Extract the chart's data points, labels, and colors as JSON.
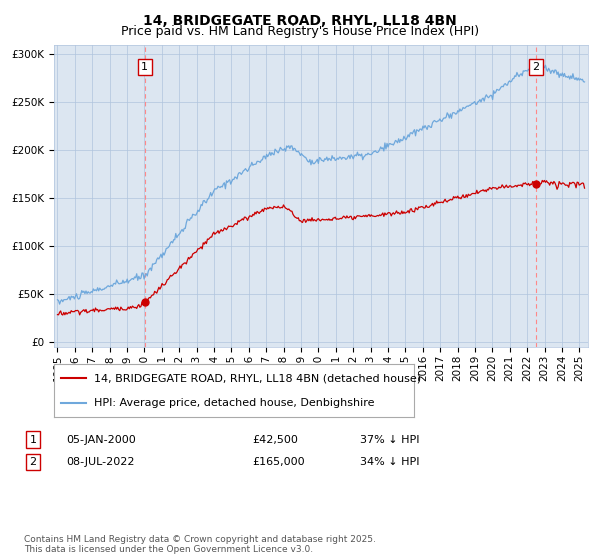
{
  "title": "14, BRIDGEGATE ROAD, RHYL, LL18 4BN",
  "subtitle": "Price paid vs. HM Land Registry's House Price Index (HPI)",
  "ylabel_ticks": [
    "£0",
    "£50K",
    "£100K",
    "£150K",
    "£200K",
    "£250K",
    "£300K"
  ],
  "ytick_values": [
    0,
    50000,
    100000,
    150000,
    200000,
    250000,
    300000
  ],
  "ylim": [
    -5000,
    310000
  ],
  "xlim_start": 1994.8,
  "xlim_end": 2025.5,
  "xticks": [
    1995,
    1996,
    1997,
    1998,
    1999,
    2000,
    2001,
    2002,
    2003,
    2004,
    2005,
    2006,
    2007,
    2008,
    2009,
    2010,
    2011,
    2012,
    2013,
    2014,
    2015,
    2016,
    2017,
    2018,
    2019,
    2020,
    2021,
    2022,
    2023,
    2024,
    2025
  ],
  "hpi_color": "#6fa8dc",
  "price_color": "#cc0000",
  "vline_color": "#ff8888",
  "bg_color": "#dce6f1",
  "plot_bg_color": "#dce6f1",
  "fig_bg_color": "#ffffff",
  "grid_color": "#b0c4de",
  "marker1_date": 2000.02,
  "marker1_price": 42500,
  "marker2_date": 2022.52,
  "marker2_price": 165000,
  "legend_label1": "14, BRIDGEGATE ROAD, RHYL, LL18 4BN (detached house)",
  "legend_label2": "HPI: Average price, detached house, Denbighshire",
  "footnote": "Contains HM Land Registry data © Crown copyright and database right 2025.\nThis data is licensed under the Open Government Licence v3.0.",
  "title_fontsize": 10,
  "subtitle_fontsize": 9,
  "tick_fontsize": 7.5,
  "legend_fontsize": 8
}
